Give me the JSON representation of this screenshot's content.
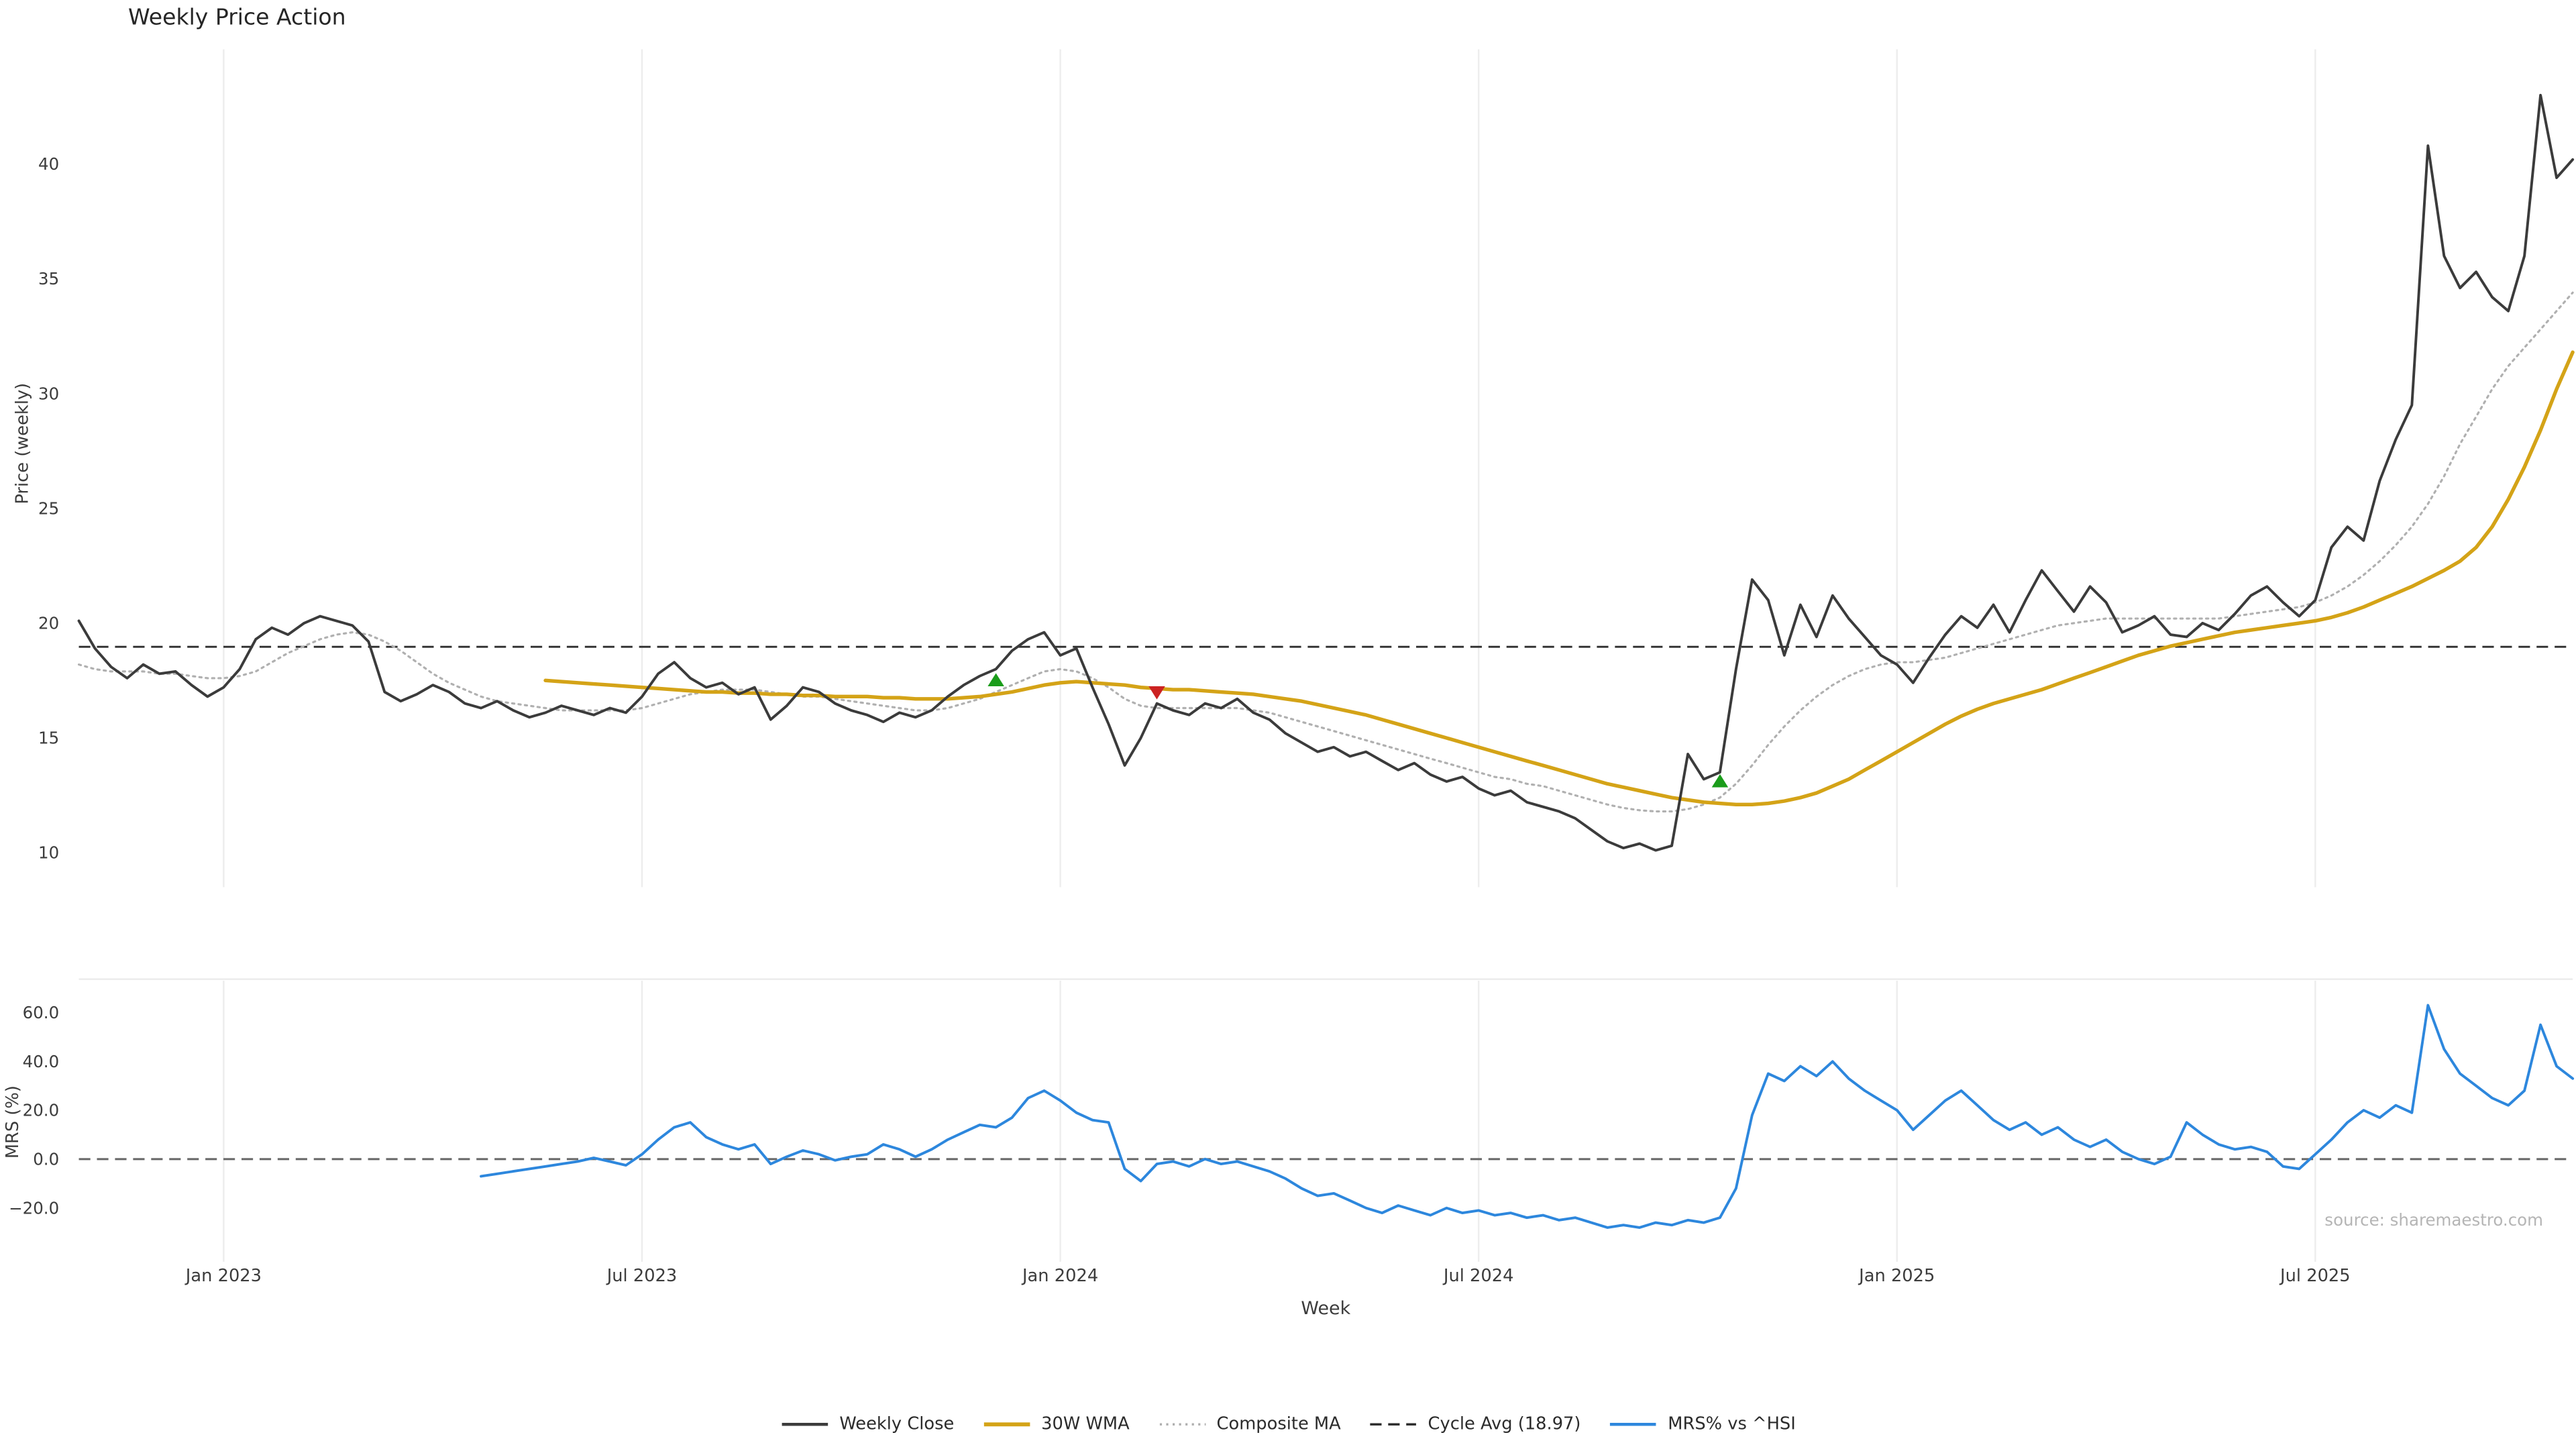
{
  "title": "Weekly Price Action",
  "source": "source: sharemaestro.com",
  "axis_labels": {
    "x": "Week",
    "y_top": "Price (weekly)",
    "y_bottom": "MRS (%)"
  },
  "colors": {
    "weekly_close": "#3b3b3b",
    "wma": "#d4a317",
    "composite": "#b0b0b0",
    "cycle_avg": "#2f2f2f",
    "mrs": "#2d87dd",
    "buy_marker": "#1a9c1a",
    "sell_marker": "#cc2222",
    "gridline": "#ededed",
    "zero_line": "#666666",
    "tick_text": "#3c3c3c"
  },
  "legend_items": [
    {
      "label": "Weekly Close",
      "color": "#3b3b3b",
      "style": "solid"
    },
    {
      "label": "30W WMA",
      "color": "#d4a317",
      "style": "solid"
    },
    {
      "label": "Composite MA",
      "color": "#b0b0b0",
      "style": "dotted"
    },
    {
      "label": "Cycle Avg (18.97)",
      "color": "#2f2f2f",
      "style": "dashed"
    },
    {
      "label": "MRS% vs ^HSI",
      "color": "#2d87dd",
      "style": "solid"
    }
  ],
  "chart_data": {
    "type": "line",
    "title": "Weekly Price Action",
    "n_weeks": 156,
    "x_axis": {
      "label": "Week",
      "ticks": [
        {
          "index": 9,
          "label": "Jan 2023"
        },
        {
          "index": 35,
          "label": "Jul 2023"
        },
        {
          "index": 61,
          "label": "Jan 2024"
        },
        {
          "index": 87,
          "label": "Jul 2024"
        },
        {
          "index": 113,
          "label": "Jan 2025"
        },
        {
          "index": 139,
          "label": "Jul 2025"
        }
      ]
    },
    "panels": [
      {
        "name": "price",
        "ylabel": "Price (weekly)",
        "ylim": [
          8.5,
          45
        ],
        "ytick_values": [
          10,
          15,
          20,
          25,
          30,
          35,
          40
        ],
        "ytick_labels": [
          "10",
          "15",
          "20",
          "25",
          "30",
          "35",
          "40"
        ],
        "hlines": [
          {
            "name": "Cycle Avg",
            "value": 18.97,
            "style": "dashed",
            "color": "#2f2f2f"
          }
        ],
        "series": [
          {
            "name": "Composite MA",
            "color": "#b0b0b0",
            "style": "dotted",
            "width": 1.3,
            "start_index": 0,
            "values": [
              18.2,
              18.0,
              17.9,
              17.9,
              17.9,
              17.8,
              17.8,
              17.7,
              17.6,
              17.6,
              17.7,
              17.9,
              18.3,
              18.7,
              19.0,
              19.3,
              19.5,
              19.6,
              19.5,
              19.2,
              18.8,
              18.3,
              17.8,
              17.4,
              17.1,
              16.8,
              16.6,
              16.5,
              16.4,
              16.3,
              16.2,
              16.2,
              16.2,
              16.2,
              16.2,
              16.3,
              16.5,
              16.7,
              16.9,
              17.0,
              17.1,
              17.1,
              17.1,
              17.0,
              16.9,
              16.8,
              16.8,
              16.7,
              16.6,
              16.5,
              16.4,
              16.3,
              16.2,
              16.2,
              16.3,
              16.5,
              16.7,
              17.0,
              17.3,
              17.6,
              17.9,
              18.0,
              17.9,
              17.6,
              17.2,
              16.7,
              16.4,
              16.3,
              16.3,
              16.3,
              16.3,
              16.3,
              16.3,
              16.2,
              16.1,
              15.9,
              15.7,
              15.5,
              15.3,
              15.1,
              14.9,
              14.7,
              14.5,
              14.3,
              14.1,
              13.9,
              13.7,
              13.5,
              13.3,
              13.2,
              13.0,
              12.9,
              12.7,
              12.5,
              12.3,
              12.1,
              11.95,
              11.85,
              11.8,
              11.8,
              11.9,
              12.1,
              12.4,
              13.0,
              13.8,
              14.7,
              15.5,
              16.2,
              16.8,
              17.3,
              17.7,
              18.0,
              18.2,
              18.3,
              18.3,
              18.4,
              18.5,
              18.7,
              18.9,
              19.1,
              19.3,
              19.5,
              19.7,
              19.9,
              20.0,
              20.1,
              20.2,
              20.2,
              20.2,
              20.2,
              20.2,
              20.2,
              20.2,
              20.2,
              20.3,
              20.4,
              20.5,
              20.6,
              20.7,
              20.9,
              21.2,
              21.6,
              22.1,
              22.7,
              23.4,
              24.2,
              25.2,
              26.4,
              27.8,
              29.0,
              30.2,
              31.2,
              32.0,
              32.8,
              33.6,
              34.4
            ]
          },
          {
            "name": "30W WMA",
            "color": "#d4a317",
            "style": "solid",
            "width": 2.2,
            "start_index": 29,
            "values": [
              17.5,
              17.45,
              17.4,
              17.35,
              17.3,
              17.25,
              17.2,
              17.15,
              17.1,
              17.05,
              17.0,
              17.0,
              16.95,
              16.95,
              16.9,
              16.9,
              16.85,
              16.85,
              16.8,
              16.8,
              16.8,
              16.75,
              16.75,
              16.7,
              16.7,
              16.7,
              16.75,
              16.8,
              16.9,
              17.0,
              17.15,
              17.3,
              17.4,
              17.45,
              17.4,
              17.35,
              17.3,
              17.2,
              17.15,
              17.1,
              17.1,
              17.05,
              17.0,
              16.95,
              16.9,
              16.8,
              16.7,
              16.6,
              16.45,
              16.3,
              16.15,
              16.0,
              15.8,
              15.6,
              15.4,
              15.2,
              15.0,
              14.8,
              14.6,
              14.4,
              14.2,
              14.0,
              13.8,
              13.6,
              13.4,
              13.2,
              13.0,
              12.85,
              12.7,
              12.55,
              12.4,
              12.3,
              12.2,
              12.15,
              12.1,
              12.1,
              12.15,
              12.25,
              12.4,
              12.6,
              12.9,
              13.2,
              13.6,
              14.0,
              14.4,
              14.8,
              15.2,
              15.6,
              15.95,
              16.25,
              16.5,
              16.7,
              16.9,
              17.1,
              17.35,
              17.6,
              17.85,
              18.1,
              18.35,
              18.6,
              18.8,
              19.0,
              19.15,
              19.3,
              19.45,
              19.6,
              19.7,
              19.8,
              19.9,
              20.0,
              20.1,
              20.25,
              20.45,
              20.7,
              21.0,
              21.3,
              21.6,
              21.95,
              22.3,
              22.7,
              23.3,
              24.2,
              25.4,
              26.8,
              28.4,
              30.2,
              31.8
            ]
          },
          {
            "name": "Weekly Close",
            "color": "#3b3b3b",
            "style": "solid",
            "width": 1.6,
            "start_index": 0,
            "values": [
              20.1,
              18.9,
              18.1,
              17.6,
              18.2,
              17.8,
              17.9,
              17.3,
              16.8,
              17.2,
              18.0,
              19.3,
              19.8,
              19.5,
              20.0,
              20.3,
              20.1,
              19.9,
              19.2,
              17.0,
              16.6,
              16.9,
              17.3,
              17.0,
              16.5,
              16.3,
              16.6,
              16.2,
              15.9,
              16.1,
              16.4,
              16.2,
              16.0,
              16.3,
              16.1,
              16.8,
              17.8,
              18.3,
              17.6,
              17.2,
              17.4,
              16.9,
              17.2,
              15.8,
              16.4,
              17.2,
              17.0,
              16.5,
              16.2,
              16.0,
              15.7,
              16.1,
              15.9,
              16.2,
              16.8,
              17.3,
              17.7,
              18.0,
              18.8,
              19.3,
              19.6,
              18.6,
              18.9,
              17.2,
              15.6,
              13.8,
              15.0,
              16.5,
              16.2,
              16.0,
              16.5,
              16.3,
              16.7,
              16.1,
              15.8,
              15.2,
              14.8,
              14.4,
              14.6,
              14.2,
              14.4,
              14.0,
              13.6,
              13.9,
              13.4,
              13.1,
              13.3,
              12.8,
              12.5,
              12.7,
              12.2,
              12.0,
              11.8,
              11.5,
              11.0,
              10.5,
              10.2,
              10.4,
              10.1,
              10.3,
              14.3,
              13.2,
              13.5,
              18.0,
              21.9,
              21.0,
              18.6,
              20.8,
              19.4,
              21.2,
              20.2,
              19.4,
              18.6,
              18.2,
              17.4,
              18.5,
              19.5,
              20.3,
              19.8,
              20.8,
              19.6,
              21.0,
              22.3,
              21.4,
              20.5,
              21.6,
              20.9,
              19.6,
              19.9,
              20.3,
              19.5,
              19.4,
              20.0,
              19.7,
              20.4,
              21.2,
              21.6,
              20.9,
              20.3,
              21.0,
              23.3,
              24.2,
              23.6,
              26.2,
              28.0,
              29.5,
              40.8,
              36.0,
              34.6,
              35.3,
              34.2,
              33.6,
              36.0,
              43.0,
              39.4,
              40.2
            ]
          }
        ],
        "markers": [
          {
            "type": "buy",
            "index": 57,
            "value": 17.5
          },
          {
            "type": "sell",
            "index": 67,
            "value": 17.0
          },
          {
            "type": "buy",
            "index": 102,
            "value": 13.1
          }
        ]
      },
      {
        "name": "mrs",
        "ylabel": "MRS (%)",
        "ylim": [
          -42,
          73
        ],
        "ytick_values": [
          -20,
          0,
          20,
          40,
          60
        ],
        "ytick_labels": [
          "−20.0",
          "0.0",
          "20.0",
          "40.0",
          "60.0"
        ],
        "hlines": [
          {
            "name": "zero",
            "value": 0,
            "style": "dashed",
            "color": "#666666"
          }
        ],
        "series": [
          {
            "name": "MRS% vs ^HSI",
            "color": "#2d87dd",
            "style": "solid",
            "width": 1.6,
            "start_index": 25,
            "values": [
              -7,
              -6,
              -5,
              -4,
              -3,
              -2,
              -1,
              0.5,
              -1,
              -2.5,
              2,
              8,
              13,
              15,
              9,
              6,
              4,
              6,
              -2,
              1,
              3.5,
              2,
              -0.5,
              1,
              2,
              6,
              4,
              1,
              4,
              8,
              11,
              14,
              13,
              17,
              25,
              28,
              24,
              19,
              16,
              15,
              -4,
              -9,
              -2,
              -1,
              -3,
              0,
              -2,
              -1,
              -3,
              -5,
              -8,
              -12,
              -15,
              -14,
              -17,
              -20,
              -22,
              -19,
              -21,
              -23,
              -20,
              -22,
              -21,
              -23,
              -22,
              -24,
              -23,
              -25,
              -24,
              -26,
              -28,
              -27,
              -28,
              -26,
              -27,
              -25,
              -26,
              -24,
              -12,
              18,
              35,
              32,
              38,
              34,
              40,
              33,
              28,
              24,
              20,
              12,
              18,
              24,
              28,
              22,
              16,
              12,
              15,
              10,
              13,
              8,
              5,
              8,
              3,
              0,
              -2,
              1,
              15,
              10,
              6,
              4,
              5,
              3,
              -3,
              -4,
              2,
              8,
              15,
              20,
              17,
              22,
              19,
              63,
              45,
              35,
              30,
              25,
              22,
              28,
              55,
              38,
              33
            ]
          }
        ],
        "markers": []
      }
    ]
  }
}
